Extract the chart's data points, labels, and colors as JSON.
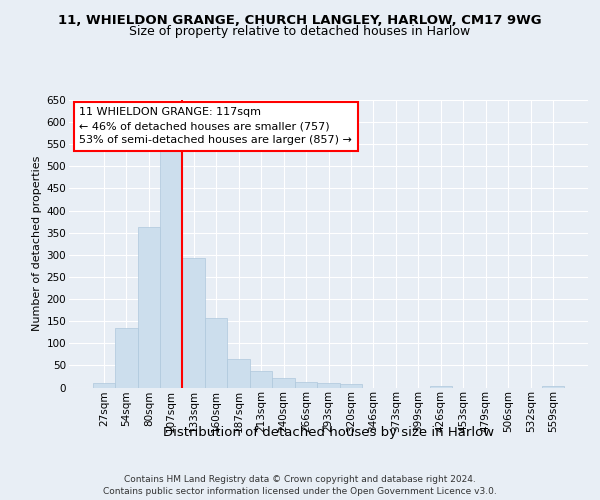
{
  "title_line1": "11, WHIELDON GRANGE, CHURCH LANGLEY, HARLOW, CM17 9WG",
  "title_line2": "Size of property relative to detached houses in Harlow",
  "xlabel": "Distribution of detached houses by size in Harlow",
  "ylabel": "Number of detached properties",
  "footer_line1": "Contains HM Land Registry data © Crown copyright and database right 2024.",
  "footer_line2": "Contains public sector information licensed under the Open Government Licence v3.0.",
  "bin_labels": [
    "27sqm",
    "54sqm",
    "80sqm",
    "107sqm",
    "133sqm",
    "160sqm",
    "187sqm",
    "213sqm",
    "240sqm",
    "266sqm",
    "293sqm",
    "320sqm",
    "346sqm",
    "373sqm",
    "399sqm",
    "426sqm",
    "453sqm",
    "479sqm",
    "506sqm",
    "532sqm",
    "559sqm"
  ],
  "bar_values": [
    10,
    135,
    362,
    538,
    292,
    158,
    65,
    38,
    22,
    13,
    10,
    7,
    0,
    0,
    0,
    4,
    0,
    0,
    0,
    0,
    4
  ],
  "bar_color": "#ccdeed",
  "bar_edge_color": "#aec8dc",
  "vline_color": "red",
  "vline_x": 3.5,
  "annotation_text": "11 WHIELDON GRANGE: 117sqm\n← 46% of detached houses are smaller (757)\n53% of semi-detached houses are larger (857) →",
  "annotation_box_color": "white",
  "annotation_box_edge": "red",
  "ylim": [
    0,
    650
  ],
  "yticks": [
    0,
    50,
    100,
    150,
    200,
    250,
    300,
    350,
    400,
    450,
    500,
    550,
    600,
    650
  ],
  "bg_color": "#e8eef5",
  "plot_bg_color": "#e8eef5",
  "grid_color": "white",
  "title_fontsize": 9.5,
  "subtitle_fontsize": 9.0,
  "ylabel_fontsize": 8.0,
  "xlabel_fontsize": 9.5,
  "tick_fontsize": 7.5,
  "footer_fontsize": 6.5,
  "annot_fontsize": 8.0
}
